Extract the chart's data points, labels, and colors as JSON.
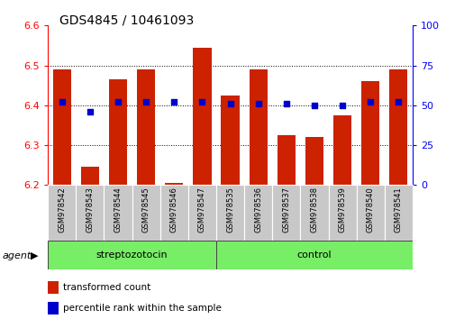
{
  "title": "GDS4845 / 10461093",
  "categories": [
    "GSM978542",
    "GSM978543",
    "GSM978544",
    "GSM978545",
    "GSM978546",
    "GSM978547",
    "GSM978535",
    "GSM978536",
    "GSM978537",
    "GSM978538",
    "GSM978539",
    "GSM978540",
    "GSM978541"
  ],
  "bar_values": [
    6.49,
    6.245,
    6.465,
    6.49,
    6.205,
    6.545,
    6.425,
    6.49,
    6.325,
    6.32,
    6.375,
    6.46,
    6.49
  ],
  "percentile_values": [
    52,
    46,
    52,
    52,
    52,
    52,
    51,
    51,
    51,
    50,
    50,
    52,
    52
  ],
  "bar_color": "#cc2200",
  "percentile_color": "#0000cc",
  "ylim": [
    6.2,
    6.6
  ],
  "y2lim": [
    0,
    100
  ],
  "yticks": [
    6.2,
    6.3,
    6.4,
    6.5,
    6.6
  ],
  "y2ticks": [
    0,
    25,
    50,
    75,
    100
  ],
  "group1_label": "streptozotocin",
  "group2_label": "control",
  "group1_indices": [
    0,
    1,
    2,
    3,
    4,
    5
  ],
  "group2_indices": [
    6,
    7,
    8,
    9,
    10,
    11,
    12
  ],
  "agent_label": "agent",
  "legend_bar_label": "transformed count",
  "legend_pct_label": "percentile rank within the sample",
  "bar_width": 0.65,
  "background_color": "#ffffff",
  "plot_bg": "#ffffff",
  "group1_color": "#77ee66",
  "group2_color": "#77ee66",
  "tick_label_bg": "#c8c8c8",
  "title_fontsize": 10,
  "axis_fontsize": 8,
  "label_fontsize": 8
}
